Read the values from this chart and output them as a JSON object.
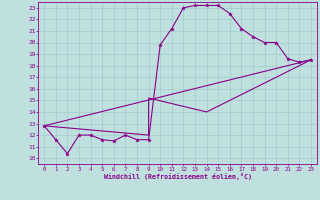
{
  "xlabel": "Windchill (Refroidissement éolien,°C)",
  "background_color": "#c0e0e0",
  "grid_color": "#a0cccc",
  "line_color": "#880088",
  "xlim": [
    -0.5,
    23.5
  ],
  "ylim": [
    9.5,
    23.5
  ],
  "xticks": [
    0,
    1,
    2,
    3,
    4,
    5,
    6,
    7,
    8,
    9,
    10,
    11,
    12,
    13,
    14,
    15,
    16,
    17,
    18,
    19,
    20,
    21,
    22,
    23
  ],
  "yticks": [
    10,
    11,
    12,
    13,
    14,
    15,
    16,
    17,
    18,
    19,
    20,
    21,
    22,
    23
  ],
  "curve1_x": [
    0,
    1,
    2,
    3,
    4,
    5,
    6,
    7,
    8,
    9,
    10,
    11,
    12,
    13,
    14,
    15,
    16,
    17,
    18,
    19,
    20,
    21,
    22,
    23
  ],
  "curve1_y": [
    12.8,
    11.6,
    10.4,
    12.0,
    12.0,
    11.6,
    11.5,
    12.0,
    11.6,
    11.6,
    19.8,
    21.2,
    23.0,
    23.2,
    23.2,
    23.2,
    22.5,
    21.2,
    20.5,
    20.0,
    20.0,
    18.6,
    18.3,
    18.5
  ],
  "curve2_x": [
    0,
    23
  ],
  "curve2_y": [
    12.8,
    18.5
  ],
  "curve3_x": [
    0,
    9,
    9,
    14,
    23
  ],
  "curve3_y": [
    12.8,
    12.0,
    15.2,
    14.0,
    18.5
  ]
}
